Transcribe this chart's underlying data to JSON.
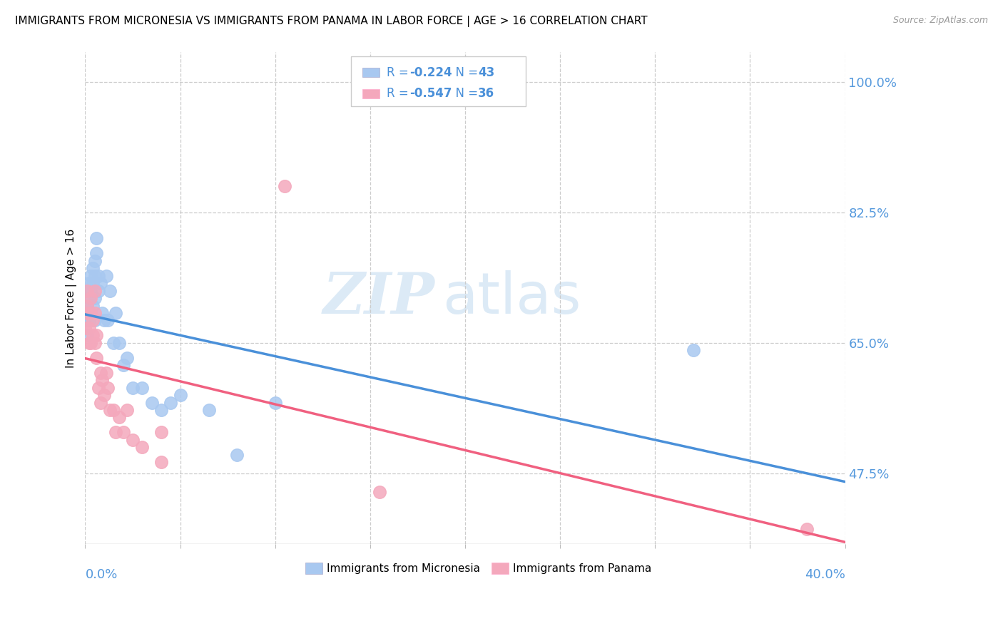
{
  "title": "IMMIGRANTS FROM MICRONESIA VS IMMIGRANTS FROM PANAMA IN LABOR FORCE | AGE > 16 CORRELATION CHART",
  "source": "Source: ZipAtlas.com",
  "ylabel": "In Labor Force | Age > 16",
  "R_micronesia": "-0.224",
  "N_micronesia": "43",
  "R_panama": "-0.547",
  "N_panama": "36",
  "micronesia_color": "#A8C8F0",
  "panama_color": "#F4A8BC",
  "micronesia_line_color": "#4A90D9",
  "panama_line_color": "#F06080",
  "legend_text_color": "#4A90D9",
  "xlim": [
    0.0,
    0.4
  ],
  "ylim": [
    0.38,
    1.04
  ],
  "yright_ticks": [
    1.0,
    0.825,
    0.65,
    0.475
  ],
  "yright_labels": [
    "100.0%",
    "82.5%",
    "65.0%",
    "47.5%"
  ],
  "xtick_positions": [
    0.0,
    0.05,
    0.1,
    0.15,
    0.2,
    0.25,
    0.3,
    0.35,
    0.4
  ],
  "grid_color": "#CCCCCC",
  "background_color": "#FFFFFF",
  "axis_color": "#5599DD",
  "micronesia_x": [
    0.0,
    0.001,
    0.001,
    0.001,
    0.001,
    0.002,
    0.002,
    0.002,
    0.003,
    0.003,
    0.003,
    0.004,
    0.004,
    0.004,
    0.005,
    0.005,
    0.005,
    0.005,
    0.006,
    0.006,
    0.007,
    0.007,
    0.008,
    0.009,
    0.01,
    0.011,
    0.012,
    0.013,
    0.015,
    0.016,
    0.018,
    0.02,
    0.022,
    0.025,
    0.03,
    0.035,
    0.04,
    0.045,
    0.05,
    0.065,
    0.08,
    0.1,
    0.32
  ],
  "micronesia_y": [
    0.68,
    0.7,
    0.72,
    0.69,
    0.66,
    0.73,
    0.71,
    0.68,
    0.74,
    0.72,
    0.69,
    0.75,
    0.73,
    0.7,
    0.76,
    0.74,
    0.71,
    0.68,
    0.79,
    0.77,
    0.74,
    0.72,
    0.73,
    0.69,
    0.68,
    0.74,
    0.68,
    0.72,
    0.65,
    0.69,
    0.65,
    0.62,
    0.63,
    0.59,
    0.59,
    0.57,
    0.56,
    0.57,
    0.58,
    0.56,
    0.5,
    0.57,
    0.64
  ],
  "panama_x": [
    0.0,
    0.001,
    0.001,
    0.001,
    0.002,
    0.002,
    0.003,
    0.003,
    0.003,
    0.004,
    0.004,
    0.005,
    0.005,
    0.005,
    0.006,
    0.006,
    0.007,
    0.008,
    0.008,
    0.009,
    0.01,
    0.011,
    0.012,
    0.013,
    0.015,
    0.016,
    0.018,
    0.02,
    0.022,
    0.025,
    0.03,
    0.04,
    0.105,
    0.155,
    0.38,
    0.04
  ],
  "panama_y": [
    0.67,
    0.69,
    0.72,
    0.7,
    0.67,
    0.65,
    0.71,
    0.69,
    0.65,
    0.68,
    0.66,
    0.72,
    0.69,
    0.65,
    0.66,
    0.63,
    0.59,
    0.61,
    0.57,
    0.6,
    0.58,
    0.61,
    0.59,
    0.56,
    0.56,
    0.53,
    0.55,
    0.53,
    0.56,
    0.52,
    0.51,
    0.49,
    0.86,
    0.45,
    0.4,
    0.53
  ]
}
